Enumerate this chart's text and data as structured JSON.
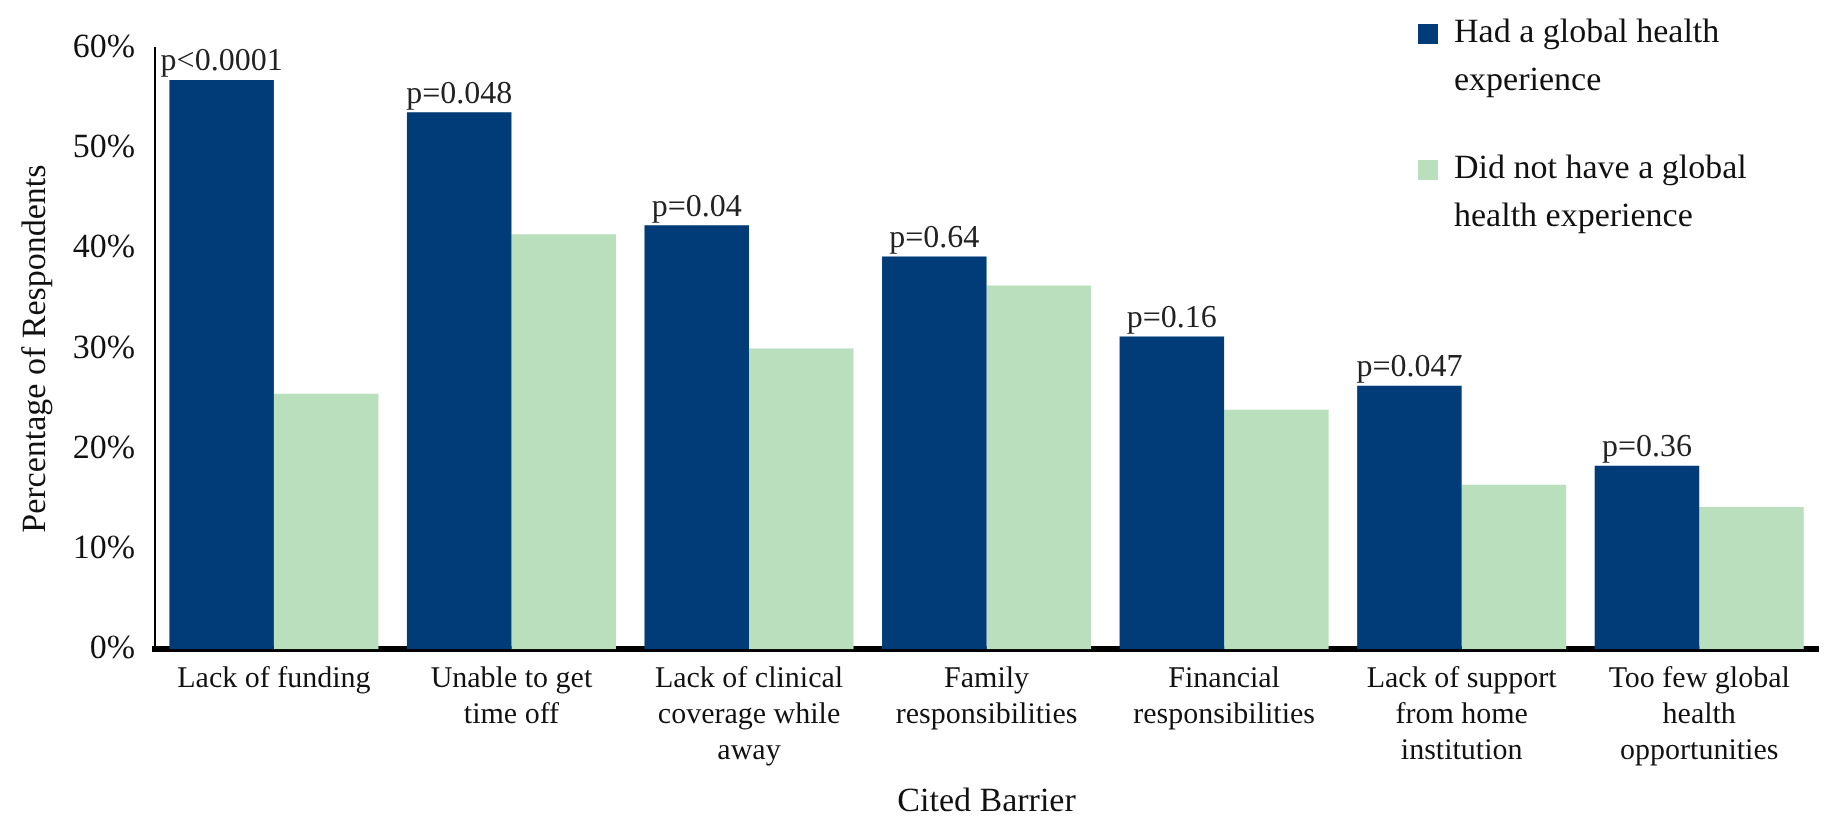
{
  "chart_data": {
    "type": "bar",
    "xlabel": "Cited Barrier",
    "ylabel": "Percentage of Respondents",
    "categories": [
      "Lack of funding",
      "Unable to get time off",
      "Lack of clinical coverage while away",
      "Family responsibilities",
      "Financial responsibilities",
      "Lack of support from home institution",
      "Too few global health opportunities"
    ],
    "series": [
      {
        "name": "Had a global health experience",
        "color": "#023c78",
        "values": [
          56.8,
          53.6,
          42.3,
          39.2,
          31.2,
          26.3,
          18.3
        ]
      },
      {
        "name": "Did not have a global health experience",
        "color": "#badfbd",
        "values": [
          25.5,
          41.4,
          30.0,
          36.3,
          23.9,
          16.4,
          14.2
        ]
      }
    ],
    "ylim": [
      0,
      60
    ],
    "yticks": [
      {
        "value": 0,
        "label": "0%"
      },
      {
        "value": 10,
        "label": "10%"
      },
      {
        "value": 20,
        "label": "20%"
      },
      {
        "value": 30,
        "label": "30%"
      },
      {
        "value": 40,
        "label": "40%"
      },
      {
        "value": 50,
        "label": "50%"
      },
      {
        "value": 60,
        "label": "60%"
      }
    ],
    "grid": false,
    "legend": "top right",
    "annotations": [
      {
        "text": "p<0.0001",
        "x": "Lack of funding",
        "y": 56.8
      },
      {
        "text": "p=0.048",
        "x": "Unable to get time off",
        "y": 53.6
      },
      {
        "text": "p=0.04",
        "x": "Lack of clinical coverage while away",
        "y": 42.3
      },
      {
        "text": "p=0.64",
        "x": "Family responsibilities",
        "y": 39.2
      },
      {
        "text": "p=0.16",
        "x": "Financial responsibilities",
        "y": 31.2
      },
      {
        "text": "p=0.047",
        "x": "Lack of support from home institution",
        "y": 26.3
      },
      {
        "text": "p=0.36",
        "x": "Too few global health opportunities",
        "y": 18.3
      }
    ]
  }
}
